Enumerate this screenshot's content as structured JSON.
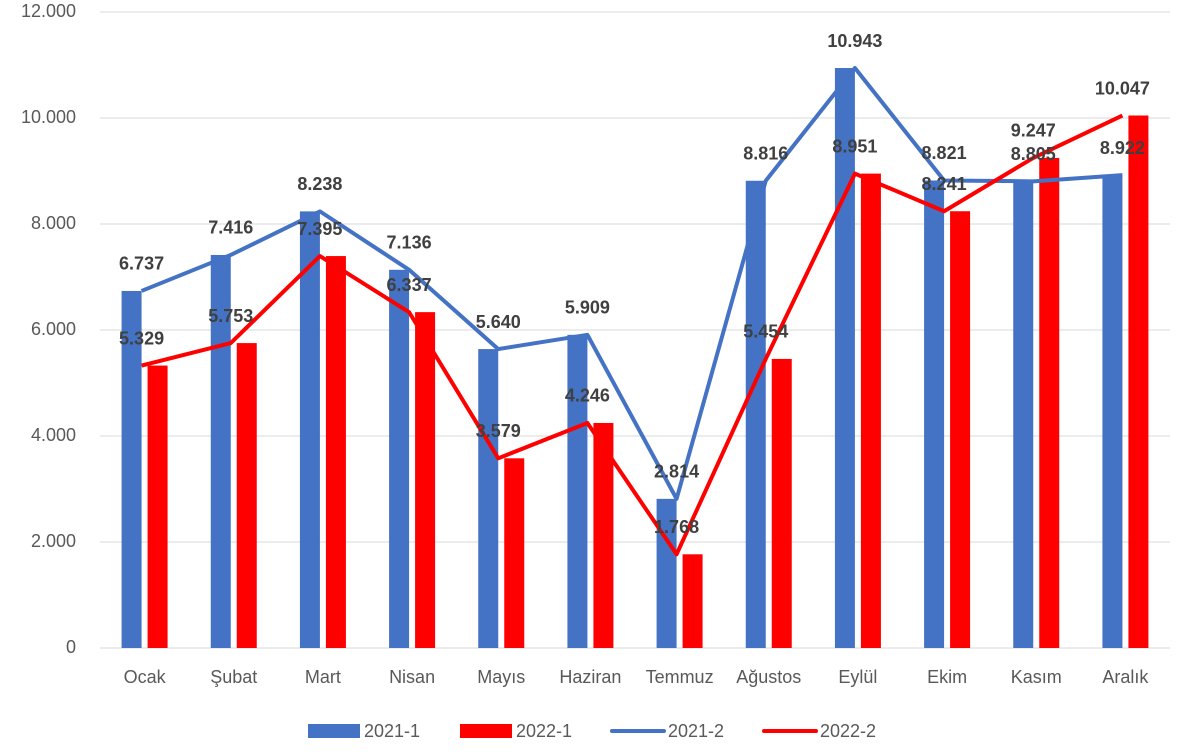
{
  "chart_data": {
    "type": "bar-line",
    "categories": [
      "Ocak",
      "Şubat",
      "Mart",
      "Nisan",
      "Mayıs",
      "Haziran",
      "Temmuz",
      "Ağustos",
      "Eylül",
      "Ekim",
      "Kasım",
      "Aralık"
    ],
    "series": [
      {
        "name": "2021-1",
        "type": "bar",
        "color": "#4472c4",
        "values": [
          6737,
          7416,
          8238,
          7136,
          5640,
          5909,
          2814,
          8816,
          10943,
          8821,
          8805,
          8922
        ]
      },
      {
        "name": "2022-1",
        "type": "bar",
        "color": "#ff0000",
        "values": [
          5329,
          5753,
          7395,
          6337,
          3579,
          4246,
          1768,
          5454,
          8951,
          8241,
          9247,
          10047
        ]
      },
      {
        "name": "2021-2",
        "type": "line",
        "color": "#4472c4",
        "values": [
          6737,
          7416,
          8238,
          7136,
          5640,
          5909,
          2814,
          8816,
          10943,
          8821,
          8805,
          8922
        ],
        "value_labels": [
          "6.737",
          "7.416",
          "8.238",
          "7.136",
          "5.640",
          "5.909",
          "2.814",
          "8.816",
          "10.943",
          "8.821",
          "8.805",
          "8.922"
        ]
      },
      {
        "name": "2022-2",
        "type": "line",
        "color": "#ff0000",
        "values": [
          5329,
          5753,
          7395,
          6337,
          3579,
          4246,
          1768,
          5454,
          8951,
          8241,
          9247,
          10047
        ],
        "value_labels": [
          "5.329",
          "5.753",
          "7.395",
          "6.337",
          "3.579",
          "4.246",
          "1.768",
          "5.454",
          "8.951",
          "8.241",
          "9.247",
          "10.047"
        ]
      }
    ],
    "ylim": [
      0,
      12000
    ],
    "yticks": [
      0,
      {
        "value": 2000,
        "label": "2.000"
      },
      {
        "value": 4000,
        "label": "4.000"
      },
      {
        "value": 6000,
        "label": "6.000"
      },
      {
        "value": 8000,
        "label": "8.000"
      },
      {
        "value": 10000,
        "label": "10.000"
      },
      {
        "value": 12000,
        "label": "12.000"
      }
    ],
    "grid": true,
    "legend": "bottom"
  }
}
